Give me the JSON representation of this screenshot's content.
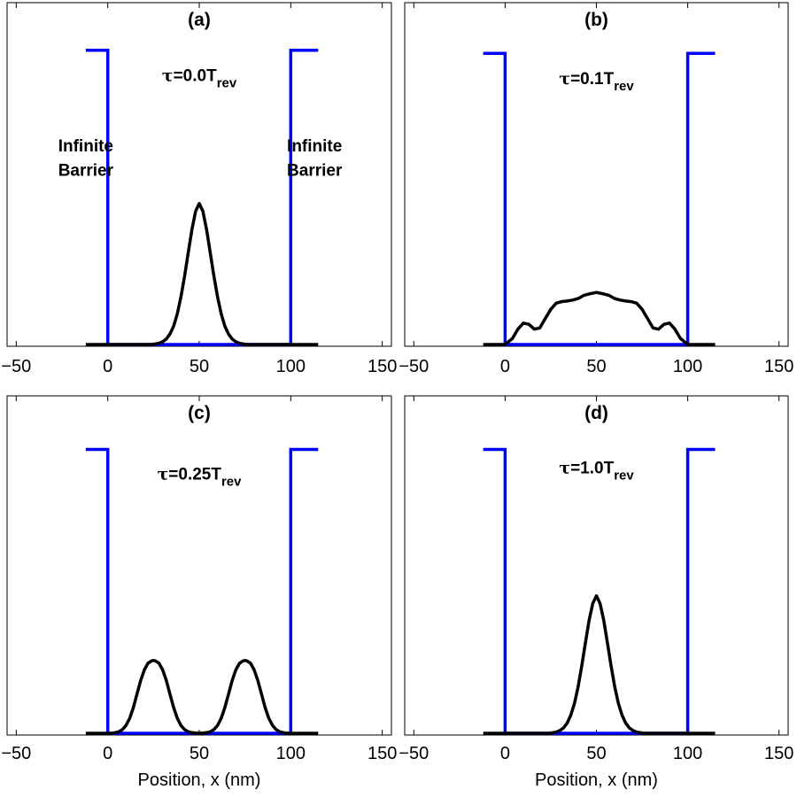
{
  "figure": {
    "xlabel": "Position, x (nm)",
    "barrier_color": "#0000ff",
    "wave_color": "#000000"
  },
  "chart_data": [
    {
      "type": "line",
      "title": "(a)",
      "xlabel": "",
      "ylabel": "",
      "xlim": [
        -55,
        155
      ],
      "ylim": [
        0,
        1
      ],
      "xticks": [
        -50,
        0,
        50,
        100,
        150
      ],
      "xtick_labels": [
        "−50",
        "0",
        "50",
        "100",
        "150"
      ],
      "grid": false,
      "legend": "none",
      "annotations": [
        {
          "text": "Infinite",
          "x": -12,
          "y": 0.63
        },
        {
          "text": "Barrier",
          "x": -12,
          "y": 0.55
        },
        {
          "text": "Infinite",
          "x": 113,
          "y": 0.63
        },
        {
          "text": "Barrier",
          "x": 113,
          "y": 0.55
        }
      ],
      "tau": {
        "symbol": "τ",
        "value": "=0.0T",
        "subscript": "rev",
        "x": 50,
        "y": 0.86
      },
      "series": [
        {
          "kind": "barrier",
          "x": [
            -12,
            0,
            0,
            100,
            100,
            115
          ],
          "y": [
            0.96,
            0.96,
            0,
            0,
            0.96,
            0.96
          ]
        },
        {
          "kind": "wave",
          "x": [
            -12,
            24,
            26,
            28,
            30,
            32,
            34,
            36,
            38,
            40,
            42,
            44,
            46,
            48,
            50,
            52,
            54,
            56,
            58,
            60,
            62,
            64,
            66,
            68,
            70,
            72,
            74,
            76,
            115
          ],
          "y": [
            0,
            0,
            0.002,
            0.004,
            0.009,
            0.018,
            0.034,
            0.06,
            0.1,
            0.155,
            0.224,
            0.3,
            0.375,
            0.435,
            0.46,
            0.435,
            0.375,
            0.3,
            0.224,
            0.155,
            0.1,
            0.06,
            0.034,
            0.018,
            0.009,
            0.004,
            0.002,
            0,
            0
          ]
        }
      ]
    },
    {
      "type": "line",
      "title": "(b)",
      "xlabel": "",
      "ylabel": "",
      "xlim": [
        -55,
        155
      ],
      "ylim": [
        0,
        1
      ],
      "xticks": [
        -50,
        0,
        50,
        100,
        150
      ],
      "xtick_labels": [
        "−50",
        "0",
        "50",
        "100",
        "150"
      ],
      "grid": false,
      "legend": "none",
      "annotations": [],
      "tau": {
        "symbol": "τ",
        "value": "=0.1T",
        "subscript": "rev",
        "x": 50,
        "y": 0.85
      },
      "series": [
        {
          "kind": "barrier",
          "x": [
            -12,
            0,
            0,
            100,
            100,
            115
          ],
          "y": [
            0.95,
            0.95,
            0,
            0,
            0.95,
            0.95
          ]
        },
        {
          "kind": "wave",
          "x": [
            -12,
            0,
            4,
            7,
            10,
            13,
            16,
            19,
            22,
            25,
            28,
            31,
            34,
            37,
            40,
            43,
            46,
            50,
            54,
            57,
            60,
            63,
            66,
            69,
            72,
            75,
            78,
            81,
            84,
            87,
            90,
            93,
            96,
            100,
            115
          ],
          "y": [
            0,
            0,
            0.02,
            0.05,
            0.07,
            0.066,
            0.05,
            0.054,
            0.085,
            0.115,
            0.135,
            0.14,
            0.142,
            0.145,
            0.15,
            0.16,
            0.165,
            0.17,
            0.165,
            0.16,
            0.15,
            0.145,
            0.142,
            0.14,
            0.135,
            0.115,
            0.085,
            0.054,
            0.05,
            0.066,
            0.07,
            0.05,
            0.02,
            0,
            0
          ]
        }
      ]
    },
    {
      "type": "line",
      "title": "(c)",
      "xlabel": "Position, x (nm)",
      "ylabel": "",
      "xlim": [
        -55,
        155
      ],
      "ylim": [
        0,
        1
      ],
      "xticks": [
        -50,
        0,
        50,
        100,
        150
      ],
      "xtick_labels": [
        "−50",
        "0",
        "50",
        "100",
        "150"
      ],
      "grid": false,
      "legend": "none",
      "annotations": [],
      "tau": {
        "symbol": "τ",
        "value": "=0.25T",
        "subscript": "rev",
        "x": 50,
        "y": 0.84
      },
      "series": [
        {
          "kind": "barrier",
          "x": [
            -12,
            0,
            0,
            100,
            100,
            115
          ],
          "y": [
            0.94,
            0.94,
            0,
            0,
            0.94,
            0.94
          ]
        },
        {
          "kind": "wave",
          "x": [
            -12,
            2,
            4,
            6,
            8,
            10,
            12,
            14,
            16,
            18,
            20,
            22,
            24,
            25,
            26,
            28,
            30,
            32,
            34,
            36,
            38,
            40,
            42,
            44,
            46,
            48,
            50,
            52,
            54,
            56,
            58,
            60,
            62,
            64,
            66,
            68,
            70,
            72,
            74,
            75,
            76,
            78,
            80,
            82,
            84,
            86,
            88,
            90,
            92,
            94,
            96,
            98,
            115
          ],
          "y": [
            0,
            0,
            0.002,
            0.005,
            0.012,
            0.026,
            0.05,
            0.085,
            0.13,
            0.175,
            0.21,
            0.232,
            0.24,
            0.241,
            0.24,
            0.232,
            0.21,
            0.175,
            0.13,
            0.085,
            0.05,
            0.026,
            0.012,
            0.005,
            0.002,
            0.001,
            0,
            0.001,
            0.002,
            0.005,
            0.012,
            0.026,
            0.05,
            0.085,
            0.13,
            0.175,
            0.21,
            0.232,
            0.24,
            0.241,
            0.24,
            0.232,
            0.21,
            0.175,
            0.13,
            0.085,
            0.05,
            0.026,
            0.012,
            0.005,
            0.002,
            0,
            0
          ]
        }
      ]
    },
    {
      "type": "line",
      "title": "(d)",
      "xlabel": "Position, x (nm)",
      "ylabel": "",
      "xlim": [
        -55,
        155
      ],
      "ylim": [
        0,
        1
      ],
      "xticks": [
        -50,
        0,
        50,
        100,
        150
      ],
      "xtick_labels": [
        "−50",
        "0",
        "50",
        "100",
        "150"
      ],
      "grid": false,
      "legend": "none",
      "annotations": [],
      "tau": {
        "symbol": "τ",
        "value": "=1.0T",
        "subscript": "rev",
        "x": 50,
        "y": 0.86
      },
      "series": [
        {
          "kind": "barrier",
          "x": [
            -12,
            0,
            0,
            100,
            100,
            115
          ],
          "y": [
            0.94,
            0.94,
            0,
            0,
            0.94,
            0.94
          ]
        },
        {
          "kind": "wave",
          "x": [
            -12,
            24,
            26,
            28,
            30,
            32,
            34,
            36,
            38,
            40,
            42,
            44,
            46,
            48,
            50,
            52,
            54,
            56,
            58,
            60,
            62,
            64,
            66,
            68,
            70,
            72,
            74,
            76,
            115
          ],
          "y": [
            0,
            0,
            0.002,
            0.004,
            0.009,
            0.018,
            0.034,
            0.06,
            0.1,
            0.155,
            0.224,
            0.3,
            0.375,
            0.43,
            0.455,
            0.43,
            0.375,
            0.3,
            0.224,
            0.155,
            0.1,
            0.06,
            0.034,
            0.018,
            0.009,
            0.004,
            0.002,
            0,
            0
          ]
        }
      ]
    }
  ]
}
